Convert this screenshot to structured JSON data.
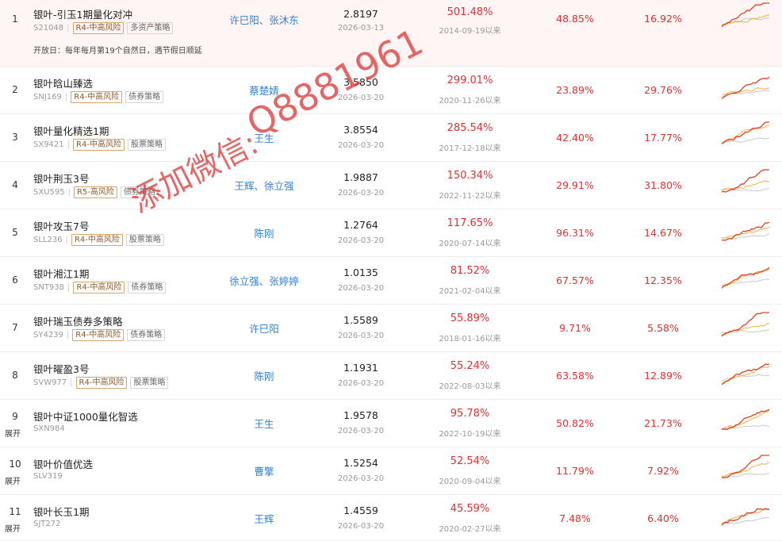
{
  "colors": {
    "accent_red": "#e03030",
    "manager_blue": "#2f7fd6",
    "risk_tag_border": "#d9a66a",
    "highlight_row": "#fff5f5",
    "spark_red": "#e04020",
    "spark_orange": "#f5b040",
    "spark_gray": "#c8c8c8"
  },
  "watermark": {
    "text_cn": "添加微信:",
    "text_id": "Q8881961"
  },
  "rows": [
    {
      "index": "1",
      "name": "银叶-引玉1期量化对冲",
      "code": "S21048",
      "risk": "R4-中高风险",
      "strategy": "多资产策略",
      "manager": "许巳阳、张沐东",
      "nav": "2.8197",
      "nav_date": "2026-03-13",
      "return": "501.48%",
      "since": "2014-09-19以来",
      "r1": "48.85%",
      "r2": "16.92%",
      "open_day": "开放日：每年每月第19个自然日，遇节假日顺延",
      "expand": "",
      "icon": "sparkline-chart"
    },
    {
      "index": "2",
      "name": "银叶晗山臻选",
      "code": "SNJ169",
      "risk": "R4-中高风险",
      "strategy": "债券策略",
      "manager": "蔡楚婧",
      "nav": "3.5850",
      "nav_date": "2026-03-20",
      "return": "299.01%",
      "since": "2020-11-26以来",
      "r1": "23.89%",
      "r2": "29.76%",
      "expand": ""
    },
    {
      "index": "3",
      "name": "银叶量化精选1期",
      "code": "SX9421",
      "risk": "R4-中高风险",
      "strategy": "股票策略",
      "manager": "王生",
      "nav": "3.8554",
      "nav_date": "2026-03-20",
      "return": "285.54%",
      "since": "2017-12-18以来",
      "r1": "42.40%",
      "r2": "17.77%",
      "expand": ""
    },
    {
      "index": "4",
      "name": "银叶荆玉3号",
      "code": "SXU595",
      "risk": "R5-高风险",
      "strategy": "债券策略",
      "manager": "王辉、徐立强",
      "nav": "1.9887",
      "nav_date": "2026-03-20",
      "return": "150.34%",
      "since": "2022-11-22以来",
      "r1": "29.91%",
      "r2": "31.80%",
      "expand": ""
    },
    {
      "index": "5",
      "name": "银叶攻玉7号",
      "code": "SLL236",
      "risk": "R4-中高风险",
      "strategy": "股票策略",
      "manager": "陈刚",
      "nav": "1.2764",
      "nav_date": "2026-03-20",
      "return": "117.65%",
      "since": "2020-07-14以来",
      "r1": "96.31%",
      "r2": "14.67%",
      "expand": ""
    },
    {
      "index": "6",
      "name": "银叶湘江1期",
      "code": "SNT938",
      "risk": "R4-中高风险",
      "strategy": "债券策略",
      "manager": "徐立强、张婷婷",
      "nav": "1.0135",
      "nav_date": "2026-03-20",
      "return": "81.52%",
      "since": "2021-02-04以来",
      "r1": "67.57%",
      "r2": "12.35%",
      "expand": ""
    },
    {
      "index": "7",
      "name": "银叶瑞玉债券多策略",
      "code": "SY4239",
      "risk": "R4-中高风险",
      "strategy": "债券策略",
      "manager": "许巳阳",
      "nav": "1.5589",
      "nav_date": "2026-03-20",
      "return": "55.89%",
      "since": "2018-01-16以来",
      "r1": "9.71%",
      "r2": "5.58%",
      "expand": ""
    },
    {
      "index": "8",
      "name": "银叶曜盈3号",
      "code": "SVW977",
      "risk": "R4-中高风险",
      "strategy": "股票策略",
      "manager": "陈刚",
      "nav": "1.1931",
      "nav_date": "2026-03-20",
      "return": "55.24%",
      "since": "2022-08-03以来",
      "r1": "63.58%",
      "r2": "12.89%",
      "expand": ""
    },
    {
      "index": "9",
      "name": "银叶中证1000量化智选",
      "code": "SXN984",
      "risk": "",
      "strategy": "",
      "manager": "王生",
      "nav": "1.9578",
      "nav_date": "2026-03-20",
      "return": "95.78%",
      "since": "2022-10-19以来",
      "r1": "50.82%",
      "r2": "21.73%",
      "expand": "展开"
    },
    {
      "index": "10",
      "name": "银叶价值优选",
      "code": "SLV319",
      "risk": "",
      "strategy": "",
      "manager": "曹擎",
      "nav": "1.5254",
      "nav_date": "2026-03-20",
      "return": "52.54%",
      "since": "2020-09-04以来",
      "r1": "11.79%",
      "r2": "7.92%",
      "expand": "展开"
    },
    {
      "index": "11",
      "name": "银叶长玉1期",
      "code": "SJT272",
      "risk": "",
      "strategy": "",
      "manager": "王辉",
      "nav": "1.4559",
      "nav_date": "2026-03-20",
      "return": "45.59%",
      "since": "2020-02-27以来",
      "r1": "7.48%",
      "r2": "6.40%",
      "expand": "展开"
    }
  ]
}
